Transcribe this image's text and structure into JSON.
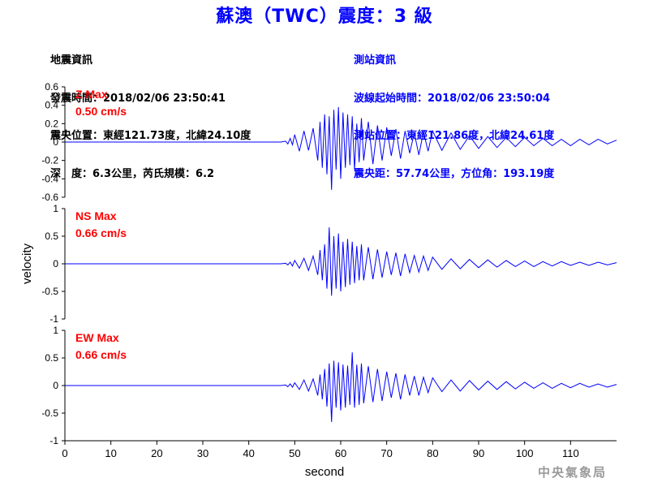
{
  "title": "蘇澳（TWC）震度：3 級",
  "quake_info": {
    "heading": "地震資訊",
    "time": "發震時間：2018/02/06 23:50:41",
    "epicenter": "震央位置：東經121.73度，北緯24.10度",
    "depth": "深　度：6.3公里，芮氏規模：6.2"
  },
  "station_info": {
    "heading": "測站資訊",
    "wave_start": "波線起始時間：2018/02/06 23:50:04",
    "location": "測站位置：東經121.86度，北緯24.61度",
    "distance": "震央距：57.74公里，方位角：193.19度"
  },
  "watermark": "中央氣象局",
  "colors": {
    "trace": "#0000ff",
    "label": "#ff0000",
    "title": "#0000ff"
  },
  "chart_data": {
    "type": "line",
    "xlabel": "second",
    "ylabel": "velocity",
    "xlim": [
      0,
      120
    ],
    "xticks": [
      0,
      10,
      20,
      30,
      40,
      50,
      60,
      70,
      80,
      90,
      100,
      110
    ],
    "grid": false,
    "series": [
      {
        "name": "Z",
        "max_label": "Z Max",
        "max_value": "0.50 cm/s",
        "ylim": [
          -0.6,
          0.6
        ],
        "yticks": [
          -0.6,
          -0.4,
          -0.2,
          0,
          0.2,
          0.4,
          0.6
        ],
        "x": [
          0,
          47,
          48,
          48.5,
          49,
          49.5,
          50,
          51,
          52,
          53,
          54,
          55,
          55.5,
          56,
          56.5,
          57,
          57.5,
          58,
          58.5,
          59,
          59.5,
          60,
          60.5,
          61,
          61.5,
          62,
          62.5,
          63,
          63.5,
          64,
          64.5,
          65,
          66,
          67,
          68,
          69,
          70,
          71,
          72,
          73,
          74,
          75,
          76,
          77,
          78,
          79,
          80,
          82,
          84,
          86,
          88,
          90,
          92,
          94,
          96,
          98,
          100,
          102,
          104,
          106,
          108,
          110,
          112,
          114,
          116,
          118,
          120
        ],
        "values": [
          0,
          0,
          0.01,
          -0.02,
          0.04,
          -0.03,
          0.08,
          -0.1,
          0.12,
          -0.09,
          0.15,
          -0.2,
          0.22,
          -0.28,
          0.3,
          -0.35,
          0.28,
          -0.52,
          0.35,
          -0.3,
          0.38,
          -0.4,
          0.32,
          -0.28,
          0.3,
          -0.25,
          0.28,
          -0.3,
          0.2,
          -0.22,
          0.26,
          -0.2,
          0.22,
          -0.24,
          0.18,
          -0.2,
          0.16,
          -0.15,
          0.14,
          -0.18,
          0.12,
          -0.12,
          0.1,
          -0.14,
          0.11,
          -0.1,
          0.12,
          -0.09,
          0.1,
          -0.08,
          0.07,
          -0.07,
          0.06,
          -0.06,
          0.05,
          -0.05,
          0.05,
          -0.04,
          0.04,
          -0.04,
          0.03,
          -0.04,
          0.03,
          -0.03,
          0.03,
          -0.02,
          0.02
        ]
      },
      {
        "name": "NS",
        "max_label": "NS Max",
        "max_value": "0.66 cm/s",
        "ylim": [
          -1,
          1
        ],
        "yticks": [
          -1,
          -0.5,
          0,
          0.5,
          1
        ],
        "x": [
          0,
          47,
          48,
          48.5,
          49,
          49.5,
          50,
          51,
          52,
          53,
          54,
          55,
          55.5,
          56,
          56.5,
          57,
          57.5,
          58,
          58.5,
          59,
          59.5,
          60,
          60.5,
          61,
          61.5,
          62,
          62.5,
          63,
          63.5,
          64,
          64.5,
          65,
          66,
          67,
          68,
          69,
          70,
          71,
          72,
          73,
          74,
          75,
          76,
          77,
          78,
          79,
          80,
          82,
          84,
          86,
          88,
          90,
          92,
          94,
          96,
          98,
          100,
          102,
          104,
          106,
          108,
          110,
          112,
          114,
          116,
          118,
          120
        ],
        "values": [
          0,
          0,
          0.01,
          -0.02,
          0.03,
          -0.04,
          0.06,
          -0.08,
          0.1,
          -0.12,
          0.14,
          -0.2,
          0.25,
          -0.3,
          0.35,
          -0.45,
          0.66,
          -0.58,
          0.5,
          -0.45,
          0.55,
          -0.5,
          0.4,
          -0.42,
          0.45,
          -0.38,
          0.4,
          -0.35,
          0.32,
          -0.3,
          0.35,
          -0.3,
          0.3,
          -0.28,
          0.26,
          -0.25,
          0.22,
          -0.2,
          0.2,
          -0.22,
          0.18,
          -0.16,
          0.15,
          -0.15,
          0.14,
          -0.12,
          0.12,
          -0.1,
          0.09,
          -0.09,
          0.08,
          -0.07,
          0.07,
          -0.06,
          0.06,
          -0.05,
          0.05,
          -0.05,
          0.04,
          -0.04,
          0.04,
          -0.03,
          0.03,
          -0.03,
          0.03,
          -0.02,
          0.02
        ]
      },
      {
        "name": "EW",
        "max_label": "EW Max",
        "max_value": "0.66 cm/s",
        "ylim": [
          -1,
          1
        ],
        "yticks": [
          -1,
          -0.5,
          0,
          0.5,
          1
        ],
        "x": [
          0,
          47,
          48,
          48.5,
          49,
          49.5,
          50,
          51,
          52,
          53,
          54,
          55,
          55.5,
          56,
          56.5,
          57,
          57.5,
          58,
          58.5,
          59,
          59.5,
          60,
          60.5,
          61,
          61.5,
          62,
          62.5,
          63,
          63.5,
          64,
          64.5,
          65,
          66,
          67,
          68,
          69,
          70,
          71,
          72,
          73,
          74,
          75,
          76,
          77,
          78,
          79,
          80,
          82,
          84,
          86,
          88,
          90,
          92,
          94,
          96,
          98,
          100,
          102,
          104,
          106,
          108,
          110,
          112,
          114,
          116,
          118,
          120
        ],
        "values": [
          0,
          0,
          0.01,
          -0.02,
          0.03,
          -0.03,
          0.05,
          -0.07,
          0.1,
          -0.1,
          0.12,
          -0.18,
          0.2,
          -0.25,
          0.3,
          -0.38,
          0.4,
          -0.66,
          0.45,
          -0.4,
          0.42,
          -0.45,
          0.38,
          -0.4,
          0.36,
          -0.35,
          0.6,
          -0.4,
          0.38,
          -0.35,
          0.4,
          -0.32,
          0.35,
          -0.3,
          0.3,
          -0.28,
          0.25,
          -0.22,
          0.22,
          -0.25,
          0.2,
          -0.18,
          0.17,
          -0.18,
          0.15,
          -0.13,
          0.14,
          -0.11,
          0.1,
          -0.1,
          0.09,
          -0.08,
          0.08,
          -0.07,
          0.07,
          -0.06,
          0.06,
          -0.05,
          0.05,
          -0.05,
          0.04,
          -0.04,
          0.04,
          -0.03,
          0.03,
          -0.03,
          0.02
        ]
      }
    ]
  }
}
